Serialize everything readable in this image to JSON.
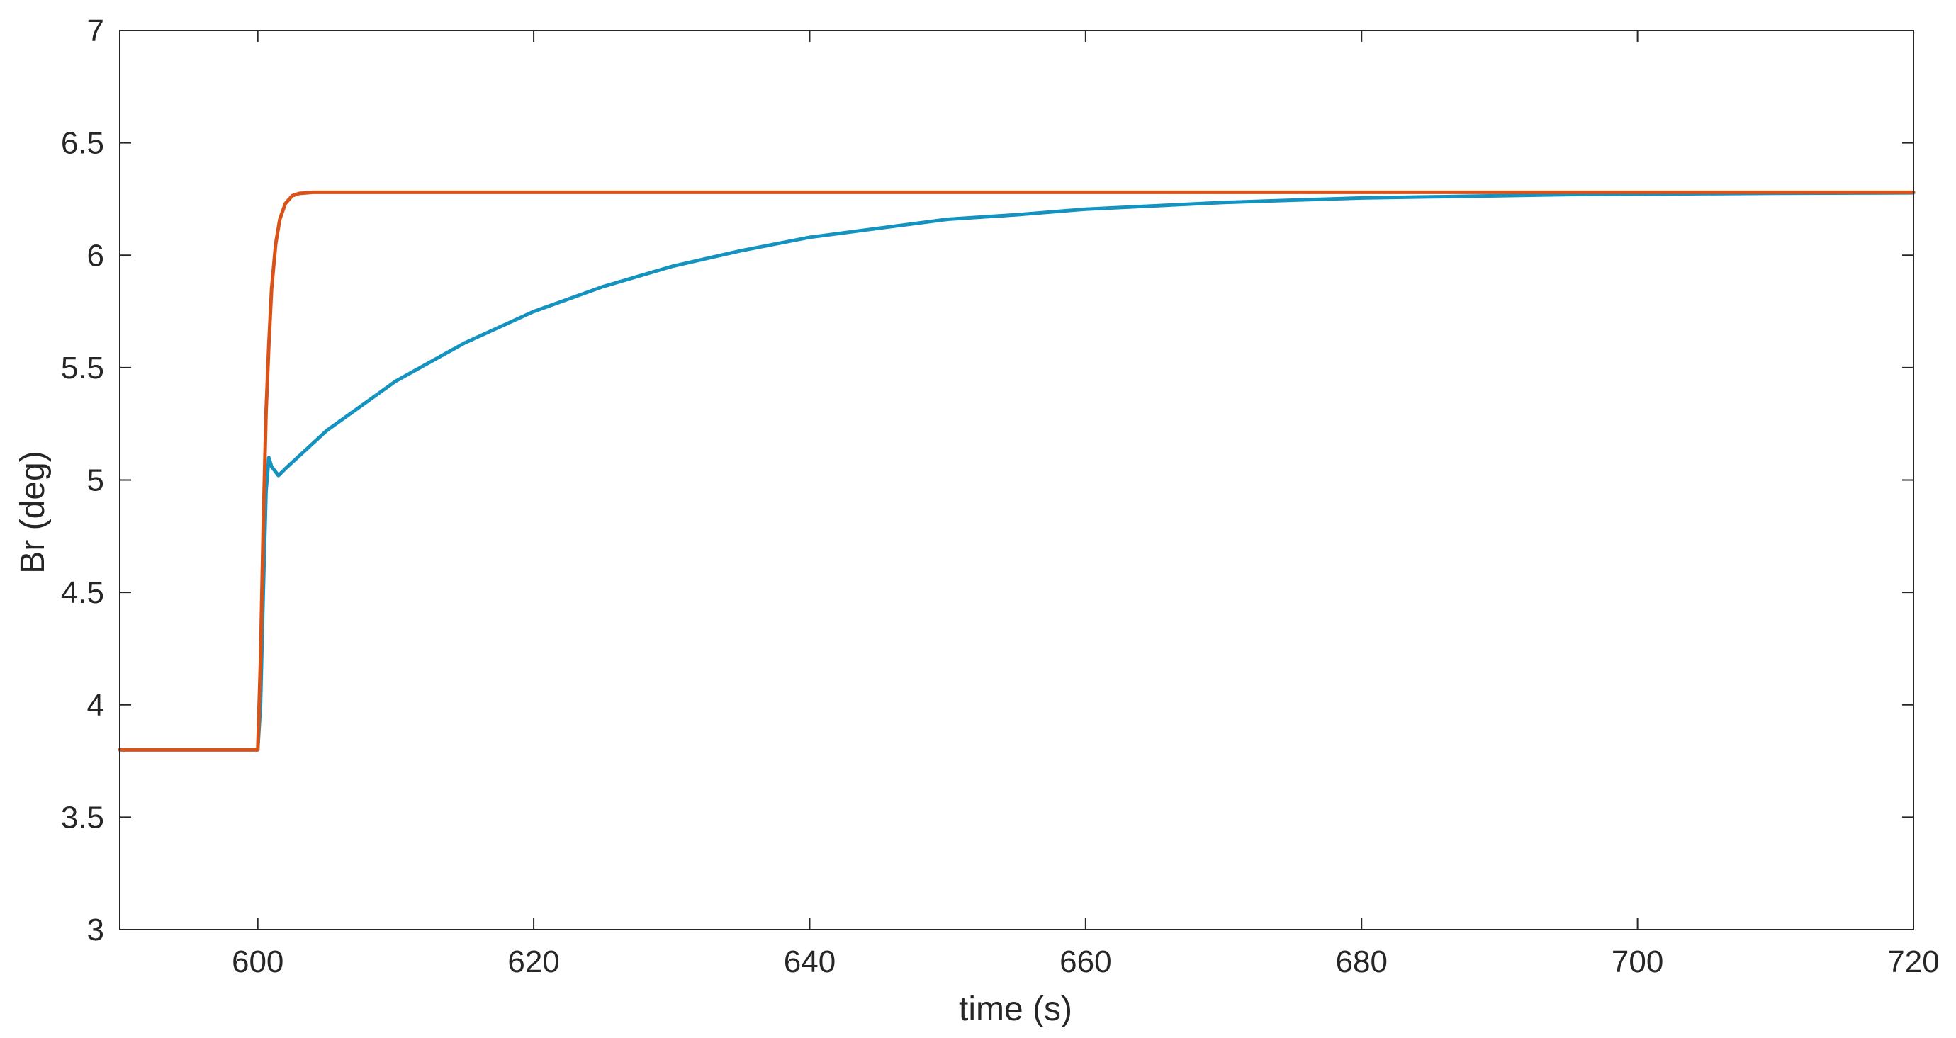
{
  "chart_data": {
    "type": "line",
    "title": "",
    "xlabel": "time (s)",
    "ylabel": "Br (deg)",
    "xlim": [
      590,
      720
    ],
    "ylim": [
      3,
      7
    ],
    "x_ticks": [
      600,
      620,
      640,
      660,
      680,
      700,
      720
    ],
    "y_ticks": [
      3,
      3.5,
      4,
      4.5,
      5,
      5.5,
      6,
      6.5,
      7
    ],
    "grid": false,
    "box": true,
    "colors": {
      "axis": "#262626",
      "tick": "#262626"
    },
    "series": [
      {
        "color": "#1593c0",
        "points": [
          [
            590,
            3.8
          ],
          [
            600,
            3.8
          ],
          [
            600.2,
            4.0
          ],
          [
            600.4,
            4.5
          ],
          [
            600.6,
            4.95
          ],
          [
            600.8,
            5.1
          ],
          [
            601,
            5.06
          ],
          [
            601.5,
            5.02
          ],
          [
            602,
            5.05
          ],
          [
            605,
            5.22
          ],
          [
            610,
            5.44
          ],
          [
            615,
            5.61
          ],
          [
            620,
            5.75
          ],
          [
            625,
            5.86
          ],
          [
            630,
            5.95
          ],
          [
            635,
            6.02
          ],
          [
            640,
            6.08
          ],
          [
            645,
            6.12
          ],
          [
            650,
            6.16
          ],
          [
            655,
            6.18
          ],
          [
            660,
            6.205
          ],
          [
            665,
            6.22
          ],
          [
            670,
            6.235
          ],
          [
            675,
            6.245
          ],
          [
            680,
            6.255
          ],
          [
            685,
            6.26
          ],
          [
            690,
            6.265
          ],
          [
            695,
            6.27
          ],
          [
            700,
            6.272
          ],
          [
            710,
            6.276
          ],
          [
            720,
            6.278
          ]
        ]
      },
      {
        "color": "#d95319",
        "points": [
          [
            590,
            3.8
          ],
          [
            600,
            3.8
          ],
          [
            600.2,
            4.2
          ],
          [
            600.4,
            4.8
          ],
          [
            600.6,
            5.3
          ],
          [
            600.8,
            5.6
          ],
          [
            601,
            5.85
          ],
          [
            601.3,
            6.05
          ],
          [
            601.6,
            6.16
          ],
          [
            602,
            6.23
          ],
          [
            602.5,
            6.265
          ],
          [
            603,
            6.275
          ],
          [
            604,
            6.28
          ],
          [
            610,
            6.28
          ],
          [
            650,
            6.28
          ],
          [
            700,
            6.28
          ],
          [
            720,
            6.28
          ]
        ]
      }
    ]
  }
}
